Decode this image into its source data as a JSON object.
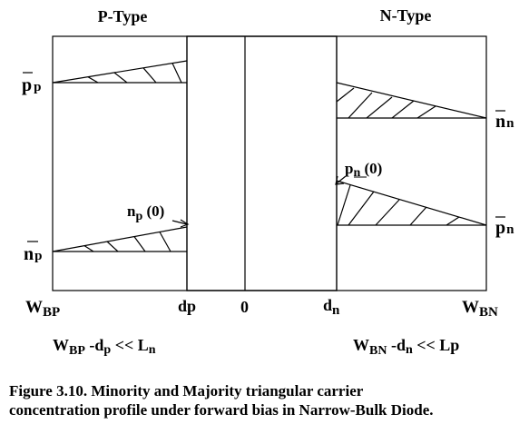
{
  "regions": {
    "p_type": "P-Type",
    "n_type": "N-Type"
  },
  "left_labels": {
    "pp": {
      "main": "p",
      "sub": "p"
    },
    "np": {
      "main": "n",
      "sub": "p"
    }
  },
  "right_labels": {
    "nn": {
      "main": "n",
      "sub": "n"
    },
    "pn": {
      "main": "p",
      "sub": "n"
    }
  },
  "annotations": {
    "np0": {
      "main": "n",
      "sub": "p",
      "tail": " (0)"
    },
    "pn0": {
      "main": "p",
      "sub": "n",
      "tail": " (0)"
    }
  },
  "axis": {
    "wbp": {
      "main": "W",
      "sub": "BP"
    },
    "dp": "dp",
    "zero": "0",
    "dn": {
      "main": "d",
      "sub": "n"
    },
    "wbn": {
      "main": "W",
      "sub": "BN"
    }
  },
  "conditions": {
    "left": {
      "w": "W",
      "wsub": "BP",
      "rest": " -d",
      "dsub": "p",
      "cmp": " << L",
      "lsub": "n"
    },
    "right": {
      "w": "W",
      "wsub": "BN",
      "rest": " -d",
      "dsub": "n",
      "cmp": " << Lp"
    }
  },
  "caption": {
    "line1": "Figure 3.10. Minority and Majority  triangular carrier",
    "line2": "concentration profile under forward bias in Narrow-Bulk Diode."
  }
}
